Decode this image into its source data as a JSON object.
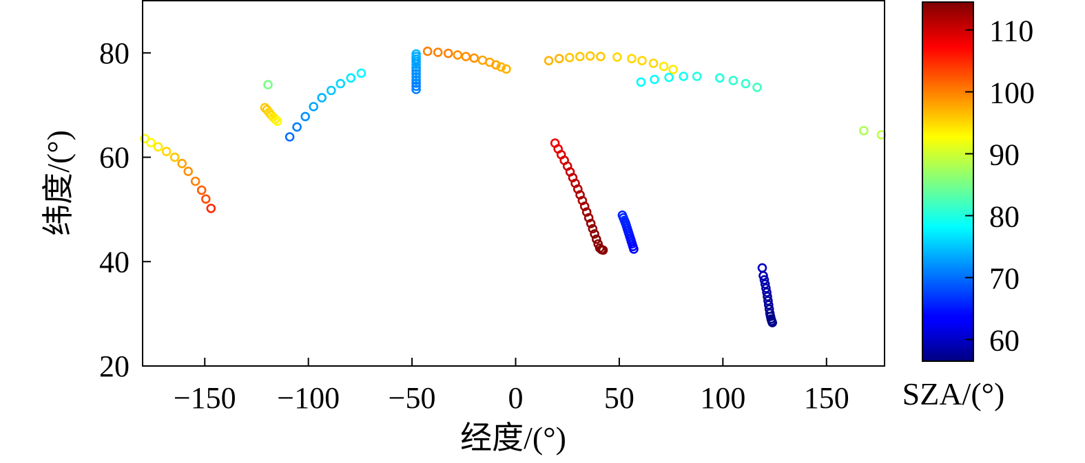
{
  "chart_data": {
    "type": "scatter",
    "xlabel": "经度/(°)",
    "ylabel": "纬度/(°)",
    "xlim": [
      -180,
      178
    ],
    "ylim": [
      20,
      90
    ],
    "xticks": [
      -150,
      -100,
      -50,
      0,
      50,
      100,
      150
    ],
    "yticks": [
      20,
      40,
      60,
      80
    ],
    "xtick_labels": [
      "−150",
      "−100",
      "−50",
      "0",
      "50",
      "100",
      "150"
    ],
    "ytick_labels": [
      "20",
      "40",
      "60",
      "80"
    ],
    "grid": false,
    "marker": "open-circle",
    "colorbar": {
      "label": "SZA/(°)",
      "range": [
        56.5,
        114.5
      ],
      "ticks": [
        60,
        70,
        80,
        90,
        100,
        110
      ],
      "tick_labels": [
        "60",
        "70",
        "80",
        "90",
        "100",
        "110"
      ],
      "colormap": "jet",
      "position": "right"
    },
    "tracks": [
      {
        "x": [
          -179,
          -176,
          -172.5,
          -168.5,
          -164.5,
          -161,
          -158,
          -154.5,
          -151.5,
          -149.5,
          -147
        ],
        "y": [
          63.6,
          62.8,
          62.0,
          61.1,
          60.0,
          58.8,
          57.3,
          55.4,
          53.7,
          52.0,
          50.2
        ],
        "sza": [
          92,
          93,
          94,
          95,
          96,
          98,
          99,
          100,
          102,
          103,
          105
        ]
      },
      {
        "x": [
          -119.5
        ],
        "y": [
          73.9
        ],
        "sza": [
          85
        ]
      },
      {
        "x": [
          -121,
          -120,
          -119,
          -118,
          -117,
          -116,
          -115
        ],
        "y": [
          69.5,
          69.1,
          68.6,
          68.1,
          67.7,
          67.3,
          66.9
        ],
        "sza": [
          96,
          96,
          95,
          95,
          94,
          94,
          93
        ]
      },
      {
        "x": [
          -109,
          -105.5,
          -101.5,
          -97.5,
          -93.5,
          -89,
          -84.5,
          -79.5,
          -74.5
        ],
        "y": [
          63.9,
          65.8,
          67.8,
          69.7,
          71.4,
          72.8,
          74.1,
          75.2,
          76.1
        ],
        "sza": [
          70,
          71,
          72,
          73,
          74,
          75,
          76,
          77,
          78
        ]
      },
      {
        "x": [
          -48,
          -48,
          -48,
          -48,
          -48,
          -48,
          -48,
          -48,
          -48,
          -48,
          -48,
          -48,
          -48
        ],
        "y": [
          73.0,
          73.6,
          74.2,
          74.8,
          75.4,
          76.0,
          76.6,
          77.2,
          77.8,
          78.3,
          78.8,
          79.3,
          79.8
        ],
        "sza": [
          71,
          71,
          71,
          71,
          72,
          72,
          72,
          72,
          73,
          73,
          73,
          73,
          74
        ]
      },
      {
        "x": [
          -42.5,
          -37.5,
          -32.5,
          -28,
          -24,
          -20,
          -16,
          -12.5,
          -9.5,
          -7,
          -4.5
        ],
        "y": [
          80.3,
          80.1,
          79.9,
          79.6,
          79.3,
          79.0,
          78.6,
          78.2,
          77.7,
          77.3,
          76.9
        ],
        "sza": [
          100,
          100,
          100,
          99,
          99,
          99,
          98,
          98,
          98,
          97,
          97
        ]
      },
      {
        "x": [
          16,
          21,
          26,
          31,
          36,
          41,
          49,
          56,
          61,
          66.5,
          71.5,
          76
        ],
        "y": [
          78.5,
          78.9,
          79.1,
          79.3,
          79.4,
          79.3,
          79.2,
          78.9,
          78.5,
          78.0,
          77.4,
          76.8
        ],
        "sza": [
          97,
          97,
          96,
          96,
          96,
          96,
          95,
          95,
          95,
          95,
          94,
          94
        ]
      },
      {
        "x": [
          60.5,
          67,
          74,
          81,
          87.5,
          98.5,
          105,
          111,
          116.5
        ],
        "y": [
          74.4,
          74.9,
          75.3,
          75.5,
          75.5,
          75.2,
          74.7,
          74.1,
          73.4
        ],
        "sza": [
          78,
          78,
          79,
          79,
          80,
          80,
          81,
          81,
          82
        ]
      },
      {
        "x": [
          168,
          176.5
        ],
        "y": [
          65.1,
          64.3
        ],
        "sza": [
          88,
          89
        ]
      },
      {
        "x": [
          19,
          20.5,
          22,
          23.5,
          25,
          26.3,
          27.6,
          28.8,
          30,
          31.1,
          32.2,
          33.3,
          34.3,
          35.3,
          36.3,
          37.2,
          38.1,
          39,
          39.8,
          40.6,
          41.4,
          42.2
        ],
        "y": [
          62.7,
          61.6,
          60.5,
          59.4,
          58.3,
          57.2,
          56.1,
          55.0,
          53.9,
          52.8,
          51.7,
          50.6,
          49.5,
          48.4,
          47.3,
          46.3,
          45.3,
          44.3,
          43.4,
          42.6,
          42.3,
          42.2
        ],
        "sza": [
          108,
          108.5,
          109,
          109.5,
          110,
          110.5,
          111,
          111,
          111.5,
          112,
          112,
          112.5,
          113,
          113,
          113.5,
          113.5,
          114,
          114,
          114,
          114,
          114,
          114
        ]
      },
      {
        "x": [
          51.5,
          52,
          52.5,
          53,
          53.4,
          53.8,
          54.2,
          54.6,
          55,
          55.4,
          55.8,
          56.2,
          56.6,
          57
        ],
        "y": [
          48.9,
          48.4,
          47.9,
          47.4,
          46.9,
          46.4,
          45.9,
          45.4,
          44.9,
          44.4,
          43.9,
          43.4,
          42.9,
          42.4
        ],
        "sza": [
          66,
          66,
          66,
          65.5,
          65.5,
          65.5,
          65,
          65,
          65,
          64.5,
          64.5,
          64.5,
          64,
          64
        ]
      },
      {
        "x": [
          119,
          119.5,
          120,
          120.4,
          120.8,
          121.2,
          121.5,
          121.8,
          122.1,
          122.4,
          122.7,
          123,
          123.3,
          123.6,
          123.9
        ],
        "y": [
          38.8,
          37.3,
          36.5,
          35.7,
          34.9,
          34.1,
          33.3,
          32.5,
          31.7,
          30.9,
          30.1,
          29.5,
          29.0,
          28.6,
          28.3
        ],
        "sza": [
          60,
          59.5,
          59.5,
          59,
          59,
          58.5,
          58.5,
          58,
          58,
          57.5,
          57.5,
          57,
          57,
          57,
          57
        ]
      }
    ]
  }
}
